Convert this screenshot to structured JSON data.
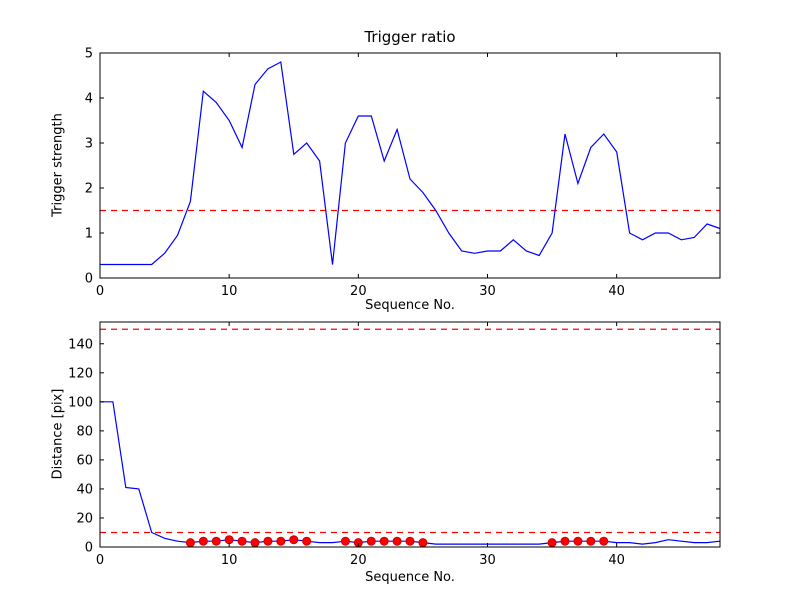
{
  "figure": {
    "background": "#ffffff",
    "line_color": "#0000ff",
    "dash_color": "#ff0000",
    "marker_face": "#ff0000",
    "marker_edge": "#cc0000",
    "axis_color": "#000000"
  },
  "chart_data": [
    {
      "type": "line",
      "title": "Trigger ratio",
      "xlabel": "Sequence No.",
      "ylabel": "Trigger strength",
      "xlim": [
        0,
        48
      ],
      "ylim": [
        0,
        5
      ],
      "xticks": [
        0,
        10,
        20,
        30,
        40
      ],
      "yticks": [
        0,
        1,
        2,
        3,
        4,
        5
      ],
      "grid": false,
      "legend": null,
      "thresholds": [
        1.5
      ],
      "x": [
        0,
        1,
        2,
        3,
        4,
        5,
        6,
        7,
        8,
        9,
        10,
        11,
        12,
        13,
        14,
        15,
        16,
        17,
        18,
        19,
        20,
        21,
        22,
        23,
        24,
        25,
        26,
        27,
        28,
        29,
        30,
        31,
        32,
        33,
        34,
        35,
        36,
        37,
        38,
        39,
        40,
        41,
        42,
        43,
        44,
        45,
        46,
        47,
        48
      ],
      "y": [
        0.3,
        0.3,
        0.3,
        0.3,
        0.3,
        0.55,
        0.95,
        1.7,
        4.15,
        3.9,
        3.5,
        2.9,
        4.3,
        4.65,
        4.8,
        2.75,
        3.0,
        2.6,
        0.3,
        3.0,
        3.6,
        3.6,
        2.6,
        3.3,
        2.2,
        1.9,
        1.5,
        1.0,
        0.6,
        0.55,
        0.6,
        0.6,
        0.85,
        0.6,
        0.5,
        1.0,
        3.2,
        2.1,
        2.9,
        3.2,
        2.8,
        1.0,
        0.85,
        1.0,
        1.0,
        0.85,
        0.9,
        1.2,
        1.1
      ]
    },
    {
      "type": "line",
      "title": "",
      "xlabel": "Sequence No.",
      "ylabel": "Distance [pix]",
      "xlim": [
        0,
        48
      ],
      "ylim": [
        0,
        155
      ],
      "xticks": [
        0,
        10,
        20,
        30,
        40
      ],
      "yticks": [
        0,
        20,
        40,
        60,
        80,
        100,
        120,
        140
      ],
      "grid": false,
      "legend": null,
      "thresholds": [
        150,
        10
      ],
      "x": [
        0,
        1,
        2,
        3,
        4,
        5,
        6,
        7,
        8,
        9,
        10,
        11,
        12,
        13,
        14,
        15,
        16,
        17,
        18,
        19,
        20,
        21,
        22,
        23,
        24,
        25,
        26,
        27,
        28,
        29,
        30,
        31,
        32,
        33,
        34,
        35,
        36,
        37,
        38,
        39,
        40,
        41,
        42,
        43,
        44,
        45,
        46,
        47,
        48
      ],
      "y": [
        100,
        100,
        41,
        40,
        10,
        6,
        4,
        3,
        4,
        4,
        5,
        4,
        3,
        4,
        4,
        5,
        4,
        3,
        3,
        4,
        3,
        4,
        4,
        4,
        4,
        3,
        2,
        2,
        2,
        2,
        2,
        2,
        2,
        2,
        2,
        3,
        4,
        4,
        4,
        4,
        3,
        3,
        2,
        3,
        5,
        4,
        3,
        3,
        4
      ],
      "markers": {
        "x": [
          7,
          8,
          9,
          10,
          11,
          12,
          13,
          14,
          15,
          16,
          19,
          20,
          21,
          22,
          23,
          24,
          25,
          35,
          36,
          37,
          38,
          39
        ],
        "y": [
          3,
          4,
          4,
          5,
          4,
          3,
          4,
          4,
          5,
          4,
          4,
          3,
          4,
          4,
          4,
          4,
          3,
          3,
          4,
          4,
          4,
          4
        ]
      }
    }
  ]
}
